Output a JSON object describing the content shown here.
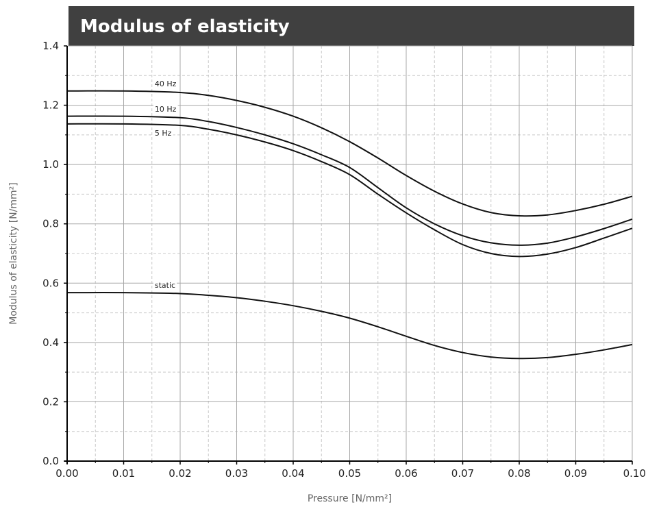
{
  "chart_data": {
    "type": "line",
    "title": "Modulus of elasticity",
    "xlabel": "Pressure [N/mm²]",
    "ylabel": "Modulus of elasticity [N/mm²]",
    "xlim": [
      0,
      0.1
    ],
    "ylim": [
      0,
      1.4
    ],
    "x_ticks": [
      "0.00",
      "0.01",
      "0.02",
      "0.03",
      "0.04",
      "0.05",
      "0.06",
      "0.07",
      "0.08",
      "0.09",
      "0.10"
    ],
    "y_ticks": [
      "0.0",
      "0.2",
      "0.4",
      "0.6",
      "0.8",
      "1.0",
      "1.2",
      "1.4"
    ],
    "grid": true,
    "series": [
      {
        "name": "40 Hz",
        "x": [
          0,
          0.01,
          0.02,
          0.025,
          0.03,
          0.035,
          0.04,
          0.045,
          0.05,
          0.055,
          0.06,
          0.065,
          0.07,
          0.075,
          0.08,
          0.085,
          0.09,
          0.095,
          0.1
        ],
        "y": [
          1.248,
          1.248,
          1.243,
          1.233,
          1.216,
          1.193,
          1.163,
          1.124,
          1.077,
          1.022,
          0.963,
          0.91,
          0.867,
          0.838,
          0.827,
          0.83,
          0.845,
          0.866,
          0.893
        ]
      },
      {
        "name": "10 Hz",
        "x": [
          0,
          0.01,
          0.02,
          0.025,
          0.03,
          0.035,
          0.04,
          0.045,
          0.05,
          0.055,
          0.06,
          0.065,
          0.07,
          0.075,
          0.08,
          0.085,
          0.09,
          0.095,
          0.1
        ],
        "y": [
          1.163,
          1.163,
          1.158,
          1.145,
          1.125,
          1.1,
          1.07,
          1.033,
          0.99,
          0.922,
          0.854,
          0.8,
          0.76,
          0.736,
          0.728,
          0.735,
          0.756,
          0.784,
          0.816
        ]
      },
      {
        "name": "5 Hz",
        "x": [
          0,
          0.01,
          0.02,
          0.025,
          0.03,
          0.035,
          0.04,
          0.045,
          0.05,
          0.055,
          0.06,
          0.065,
          0.07,
          0.075,
          0.08,
          0.085,
          0.09,
          0.095,
          0.1
        ],
        "y": [
          1.137,
          1.137,
          1.132,
          1.119,
          1.1,
          1.076,
          1.047,
          1.01,
          0.966,
          0.9,
          0.837,
          0.78,
          0.73,
          0.7,
          0.69,
          0.698,
          0.72,
          0.752,
          0.785
        ]
      },
      {
        "name": "static",
        "x": [
          0,
          0.01,
          0.02,
          0.025,
          0.03,
          0.035,
          0.04,
          0.045,
          0.05,
          0.055,
          0.06,
          0.065,
          0.07,
          0.075,
          0.08,
          0.085,
          0.09,
          0.095,
          0.1
        ],
        "y": [
          0.568,
          0.568,
          0.565,
          0.559,
          0.551,
          0.539,
          0.524,
          0.505,
          0.482,
          0.453,
          0.421,
          0.39,
          0.366,
          0.351,
          0.346,
          0.349,
          0.36,
          0.375,
          0.393
        ]
      }
    ],
    "series_label_at_x": 0.0155
  },
  "colors": {
    "title_bar_bg": "#404040",
    "title_text": "#ffffff",
    "line": "#111111",
    "grid_major": "#a8a8a8",
    "grid_minor": "#c8c8c8",
    "axis": "#000000",
    "axis_label": "#666666"
  }
}
